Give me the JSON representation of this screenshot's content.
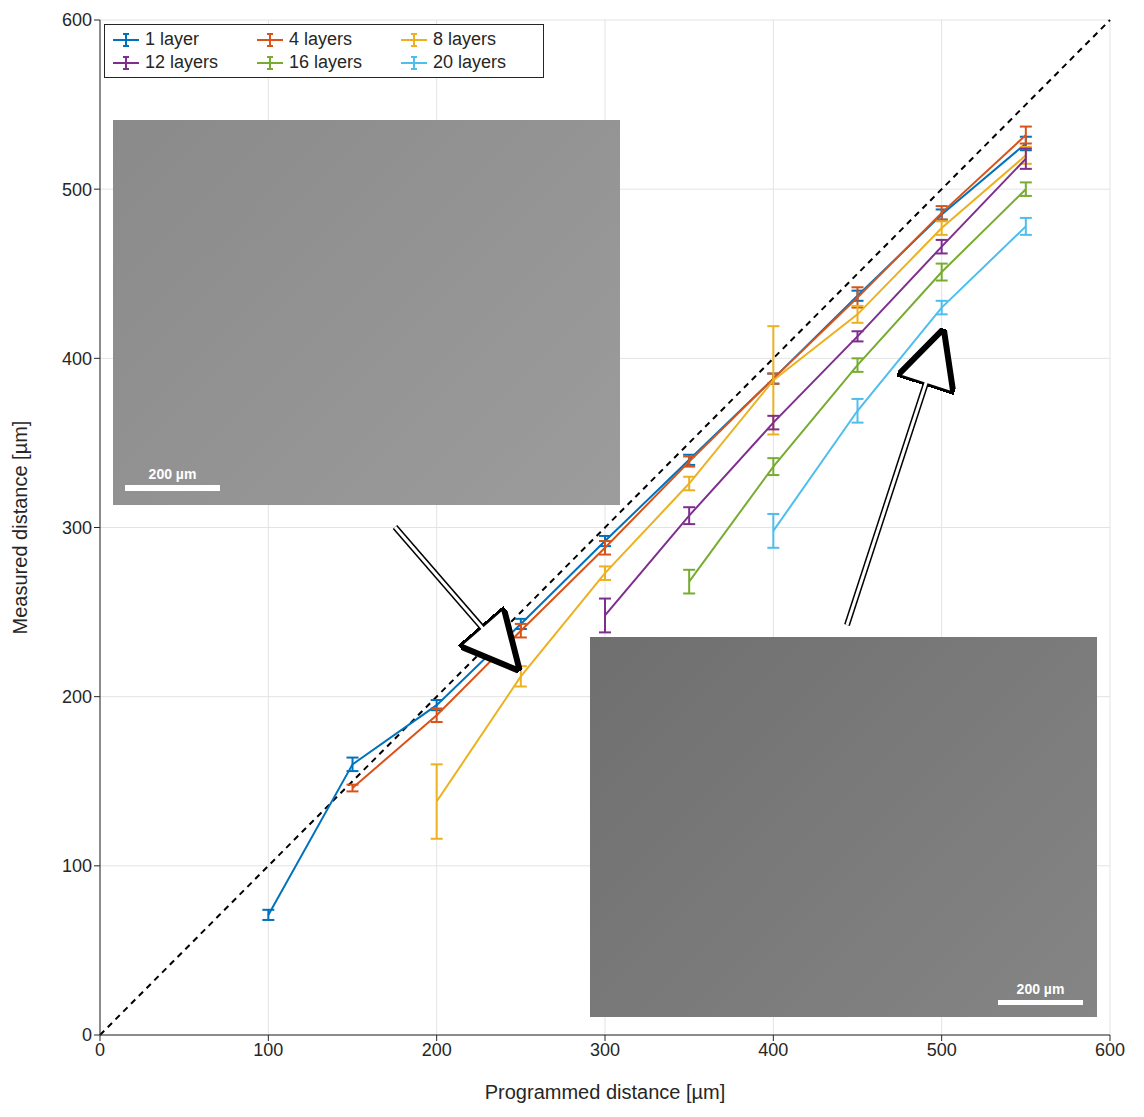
{
  "chart_data": {
    "type": "line",
    "x_label": "Programmed distance [µm]",
    "y_label": "Measured distance [µm]",
    "xlim": [
      0,
      600
    ],
    "ylim": [
      0,
      600
    ],
    "xticks": [
      0,
      100,
      200,
      300,
      400,
      500,
      600
    ],
    "yticks": [
      0,
      100,
      200,
      300,
      400,
      500,
      600
    ],
    "grid": true,
    "legend": "top-left",
    "series": [
      {
        "name": "1 layer",
        "color": "#0072BD",
        "x": [
          100,
          150,
          200,
          250,
          300,
          350,
          400,
          450,
          500,
          550
        ],
        "values": [
          71,
          160,
          195,
          243,
          292,
          340,
          388,
          437,
          485,
          527
        ],
        "errors": [
          3,
          4,
          3,
          3,
          3,
          3,
          3,
          3,
          3,
          4
        ]
      },
      {
        "name": "4 layers",
        "color": "#D95319",
        "x": [
          150,
          200,
          250,
          300,
          350,
          400,
          450,
          500,
          550
        ],
        "values": [
          146,
          189,
          239,
          288,
          339,
          388,
          436,
          486,
          532
        ],
        "errors": [
          2,
          4,
          4,
          4,
          3,
          3,
          6,
          4,
          5
        ]
      },
      {
        "name": "8 layers",
        "color": "#EDB120",
        "x": [
          200,
          250,
          300,
          350,
          400,
          450,
          500,
          550
        ],
        "values": [
          138,
          212,
          273,
          326,
          387,
          426,
          477,
          520
        ],
        "errors": [
          22,
          6,
          4,
          4,
          32,
          5,
          4,
          5
        ]
      },
      {
        "name": "12 layers",
        "color": "#7E2F8E",
        "x": [
          300,
          350,
          400,
          450,
          500,
          550
        ],
        "values": [
          248,
          307,
          362,
          413,
          466,
          518
        ],
        "errors": [
          10,
          5,
          4,
          3,
          4,
          6
        ]
      },
      {
        "name": "16 layers",
        "color": "#77AC30",
        "x": [
          350,
          400,
          450,
          500,
          550
        ],
        "values": [
          268,
          336,
          396,
          451,
          500
        ],
        "errors": [
          7,
          5,
          4,
          5,
          4
        ]
      },
      {
        "name": "20 layers",
        "color": "#4DBEEE",
        "x": [
          400,
          450,
          500,
          550
        ],
        "values": [
          298,
          369,
          430,
          478
        ],
        "errors": [
          10,
          7,
          4,
          5
        ]
      }
    ],
    "insets": [
      {
        "scale_bar": "200 µm"
      },
      {
        "scale_bar": "200 µm"
      }
    ]
  }
}
